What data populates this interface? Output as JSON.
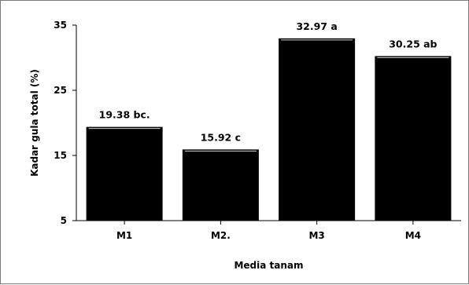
{
  "chart_data": {
    "type": "bar",
    "categories": [
      "M1",
      "M2.",
      "M3",
      "M4"
    ],
    "values": [
      19.38,
      15.92,
      32.97,
      30.25
    ],
    "data_labels": [
      "19.38 bc.",
      "15.92 c",
      "32.97 a",
      "30.25 ab"
    ],
    "xlabel": "Media tanam",
    "ylabel": "Kadar gula total (%)",
    "ylim": [
      5,
      35
    ],
    "yticks": [
      5,
      15,
      25,
      35
    ],
    "grid": false,
    "legend": "none",
    "bar_color": "#000000",
    "title": ""
  }
}
